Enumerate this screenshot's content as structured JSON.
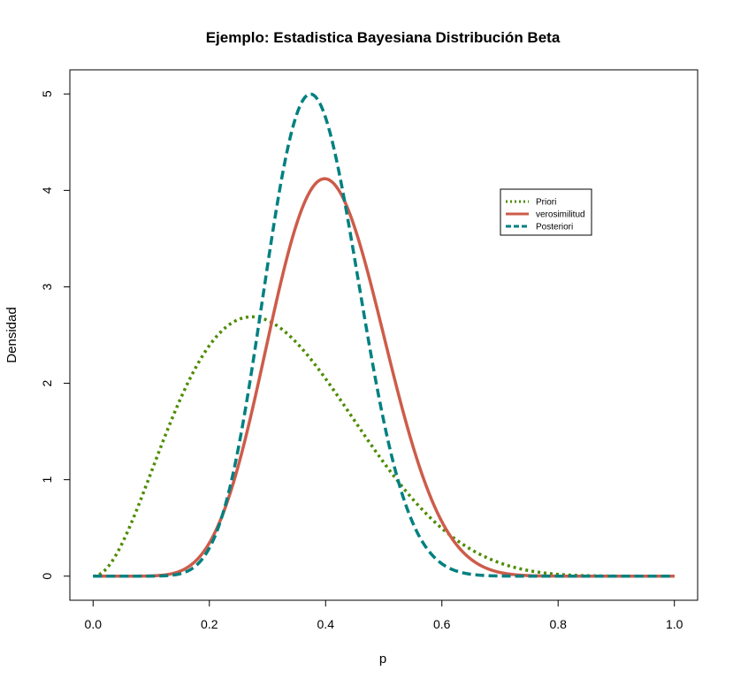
{
  "chart_data": {
    "type": "line",
    "title": "Ejemplo: Estadistica Bayesiana Distribución Beta",
    "xlabel": "p",
    "ylabel": "Densidad",
    "xlim": [
      -0.04,
      1.04
    ],
    "ylim": [
      -0.25,
      5.25
    ],
    "x_ticks": [
      0.0,
      0.2,
      0.4,
      0.6,
      0.8,
      1.0
    ],
    "x_tick_labels": [
      "0.0",
      "0.2",
      "0.4",
      "0.6",
      "0.8",
      "1.0"
    ],
    "y_ticks": [
      0,
      1,
      2,
      3,
      4,
      5
    ],
    "y_tick_labels": [
      "0",
      "1",
      "2",
      "3",
      "4",
      "5"
    ],
    "grid": false,
    "legend_position": "upper-right (inset)",
    "series": [
      {
        "name": "Priori",
        "color": "#4d8c00",
        "line_style": "dotted",
        "beta_params": [
          3.1,
          6.6
        ],
        "x": [
          0.0,
          0.05,
          0.1,
          0.15,
          0.2,
          0.25,
          0.275,
          0.3,
          0.35,
          0.4,
          0.45,
          0.5,
          0.55,
          0.6,
          0.65,
          0.7,
          0.75,
          0.8,
          0.85,
          0.9,
          0.95,
          1.0
        ],
        "values": [
          0.0,
          0.42,
          1.28,
          2.1,
          2.6,
          2.82,
          2.85,
          2.82,
          2.5,
          2.03,
          1.5,
          1.01,
          0.62,
          0.34,
          0.16,
          0.07,
          0.02,
          0.005,
          0.001,
          0.0,
          0.0,
          0.0
        ]
      },
      {
        "name": "verosimilitud",
        "color": "#cd5c4a",
        "line_style": "solid",
        "beta_params": [
          10.6,
          15.5
        ],
        "x": [
          0.0,
          0.05,
          0.1,
          0.15,
          0.2,
          0.25,
          0.3,
          0.35,
          0.4,
          0.41,
          0.45,
          0.5,
          0.55,
          0.6,
          0.65,
          0.7,
          0.75,
          0.8,
          0.85,
          0.9,
          0.95,
          1.0
        ],
        "values": [
          0.0,
          0.0,
          0.002,
          0.04,
          0.24,
          0.88,
          2.1,
          3.51,
          4.31,
          4.33,
          3.99,
          2.87,
          1.63,
          0.72,
          0.24,
          0.06,
          0.01,
          0.001,
          0.0,
          0.0,
          0.0,
          0.0
        ]
      },
      {
        "name": "Posteriori",
        "color": "#008080",
        "line_style": "dashed",
        "beta_params": [
          14.2,
          23.1
        ],
        "x": [
          0.0,
          0.05,
          0.1,
          0.15,
          0.2,
          0.25,
          0.3,
          0.35,
          0.375,
          0.4,
          0.45,
          0.5,
          0.55,
          0.6,
          0.65,
          0.7,
          0.75,
          0.8,
          0.85,
          0.9,
          0.95,
          1.0
        ],
        "values": [
          0.0,
          0.0,
          0.0,
          0.02,
          0.27,
          1.47,
          3.6,
          4.97,
          5.04,
          4.83,
          3.37,
          1.58,
          0.48,
          0.09,
          0.01,
          0.0,
          0.0,
          0.0,
          0.0,
          0.0,
          0.0,
          0.0
        ]
      }
    ]
  }
}
